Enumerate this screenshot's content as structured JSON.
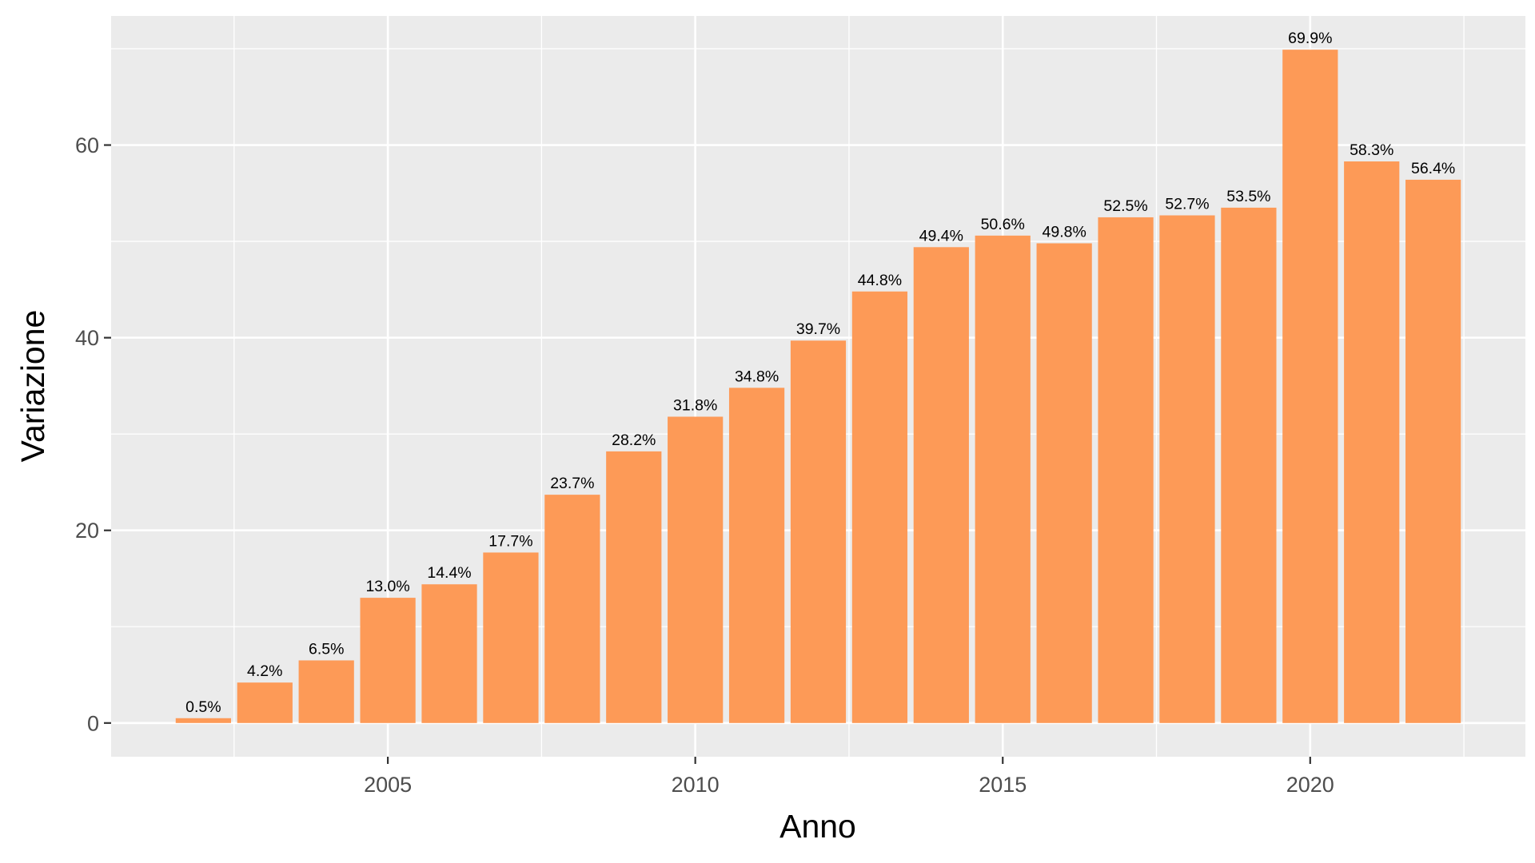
{
  "chart_data": {
    "type": "bar",
    "xlabel": "Anno",
    "ylabel": "Variazione",
    "x": [
      2002,
      2003,
      2004,
      2005,
      2006,
      2007,
      2008,
      2009,
      2010,
      2011,
      2012,
      2013,
      2014,
      2015,
      2016,
      2017,
      2018,
      2019,
      2020,
      2021,
      2022
    ],
    "values": [
      0.5,
      4.2,
      6.5,
      13.0,
      14.4,
      17.7,
      23.7,
      28.2,
      31.8,
      34.8,
      39.7,
      44.8,
      49.4,
      50.6,
      49.8,
      52.5,
      52.7,
      53.5,
      69.9,
      58.3,
      56.4
    ],
    "labels": [
      "0.5%",
      "4.2%",
      "6.5%",
      "13.0%",
      "14.4%",
      "17.7%",
      "23.7%",
      "28.2%",
      "31.8%",
      "34.8%",
      "39.7%",
      "44.8%",
      "49.4%",
      "50.6%",
      "49.8%",
      "52.5%",
      "52.7%",
      "53.5%",
      "69.9%",
      "58.3%",
      "56.4%"
    ],
    "x_ticks": [
      "2005",
      "2010",
      "2015",
      "2020"
    ],
    "y_ticks": [
      "0",
      "20",
      "40",
      "60"
    ],
    "xlim": [
      2000.5,
      2023.5
    ],
    "ylim": [
      -3.5,
      73.4
    ],
    "bar_color": "#FD9A57",
    "panel_color": "#EBEBEB",
    "grid_color": "#FFFFFF",
    "grid": true,
    "legend": "none"
  }
}
